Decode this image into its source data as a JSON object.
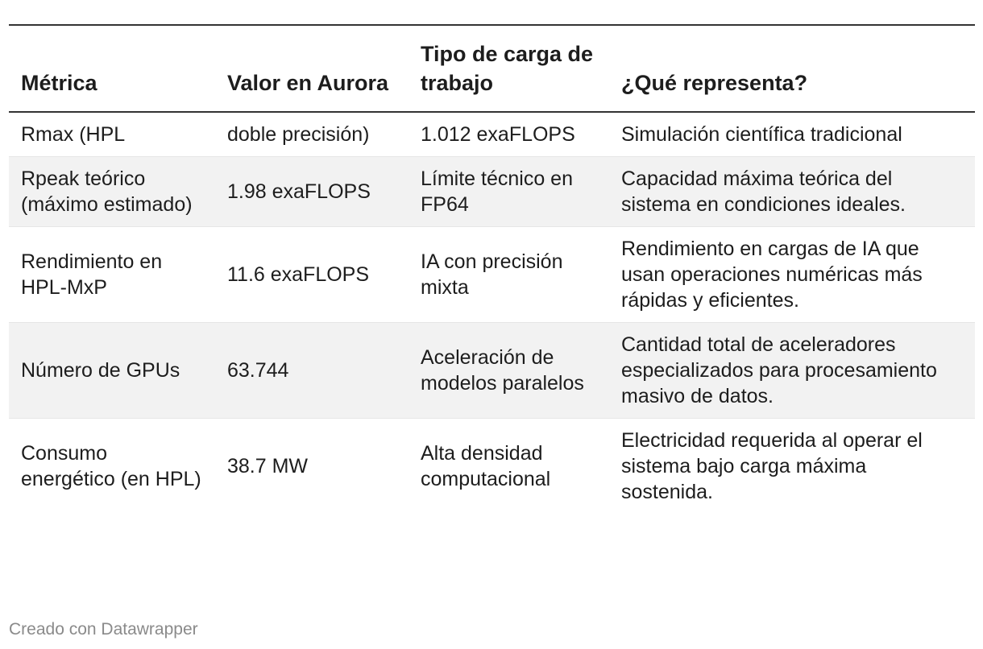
{
  "chart_data": {
    "type": "table",
    "columns": [
      "Métrica",
      "Valor en Aurora",
      "Tipo de carga de trabajo",
      "¿Qué representa?"
    ],
    "rows": [
      [
        "Rmax (HPL",
        "doble precisión)",
        "1.012 exaFLOPS",
        "Simulación científica tradicional"
      ],
      [
        "Rpeak teórico (máximo estimado)",
        "1.98 exaFLOPS",
        "Límite técnico en FP64",
        "Capacidad máxima teórica del sistema en condiciones ideales."
      ],
      [
        "Rendimiento en HPL-MxP",
        "11.6 exaFLOPS",
        "IA con precisión mixta",
        "Rendimiento en cargas de IA que usan operaciones numéricas más rápidas y eficientes."
      ],
      [
        "Número de GPUs",
        "63.744",
        "Aceleración de modelos paralelos",
        "Cantidad total de aceleradores especializados para procesamiento masivo de datos."
      ],
      [
        "Consumo energético (en HPL)",
        "38.7 MW",
        "Alta densidad computacional",
        "Electricidad requerida al operar el sistema bajo carga máxima sostenida."
      ]
    ]
  },
  "footer": {
    "credit": "Creado con Datawrapper"
  },
  "colors": {
    "text": "#1d1d1d",
    "rule": "#333333",
    "stripe": "#f2f2f2",
    "credit": "#8a8a8a"
  }
}
